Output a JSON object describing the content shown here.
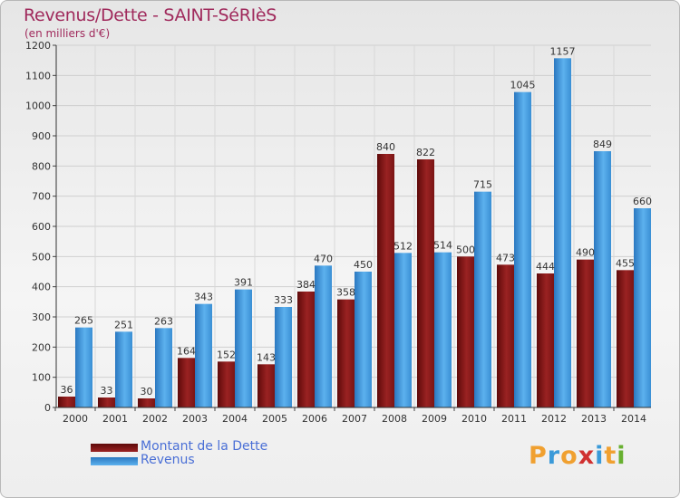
{
  "header": {
    "title": "Revenus/Dette - SAINT-SéRIèS",
    "subtitle": "(en milliers d'€)"
  },
  "chart_data": {
    "type": "bar",
    "categories": [
      "2000",
      "2001",
      "2002",
      "2003",
      "2004",
      "2005",
      "2006",
      "2007",
      "2008",
      "2009",
      "2010",
      "2011",
      "2012",
      "2013",
      "2014"
    ],
    "series": [
      {
        "name": "Montant de la Dette",
        "color": "#8b1a1a",
        "values": [
          36,
          33,
          30,
          164,
          152,
          143,
          384,
          358,
          840,
          822,
          500,
          473,
          444,
          490,
          455
        ]
      },
      {
        "name": "Revenus",
        "color": "#3f9be0",
        "values": [
          265,
          251,
          263,
          343,
          391,
          333,
          470,
          450,
          512,
          514,
          715,
          1045,
          1157,
          849,
          660
        ]
      }
    ],
    "ylim": [
      0,
      1200
    ],
    "yticks": [
      0,
      100,
      200,
      300,
      400,
      500,
      600,
      700,
      800,
      900,
      1000,
      1100,
      1200
    ],
    "grid": true,
    "legend": "bottom-left"
  },
  "legend": {
    "debt_label": "Montant de la Dette",
    "revenue_label": "Revenus"
  },
  "brand": {
    "letters": [
      "P",
      "r",
      "o",
      "x",
      "i",
      "t",
      "i"
    ],
    "colors": [
      "#f0a030",
      "#3a9ad9",
      "#f0a030",
      "#d03030",
      "#3a9ad9",
      "#f0a030",
      "#68b030"
    ]
  }
}
